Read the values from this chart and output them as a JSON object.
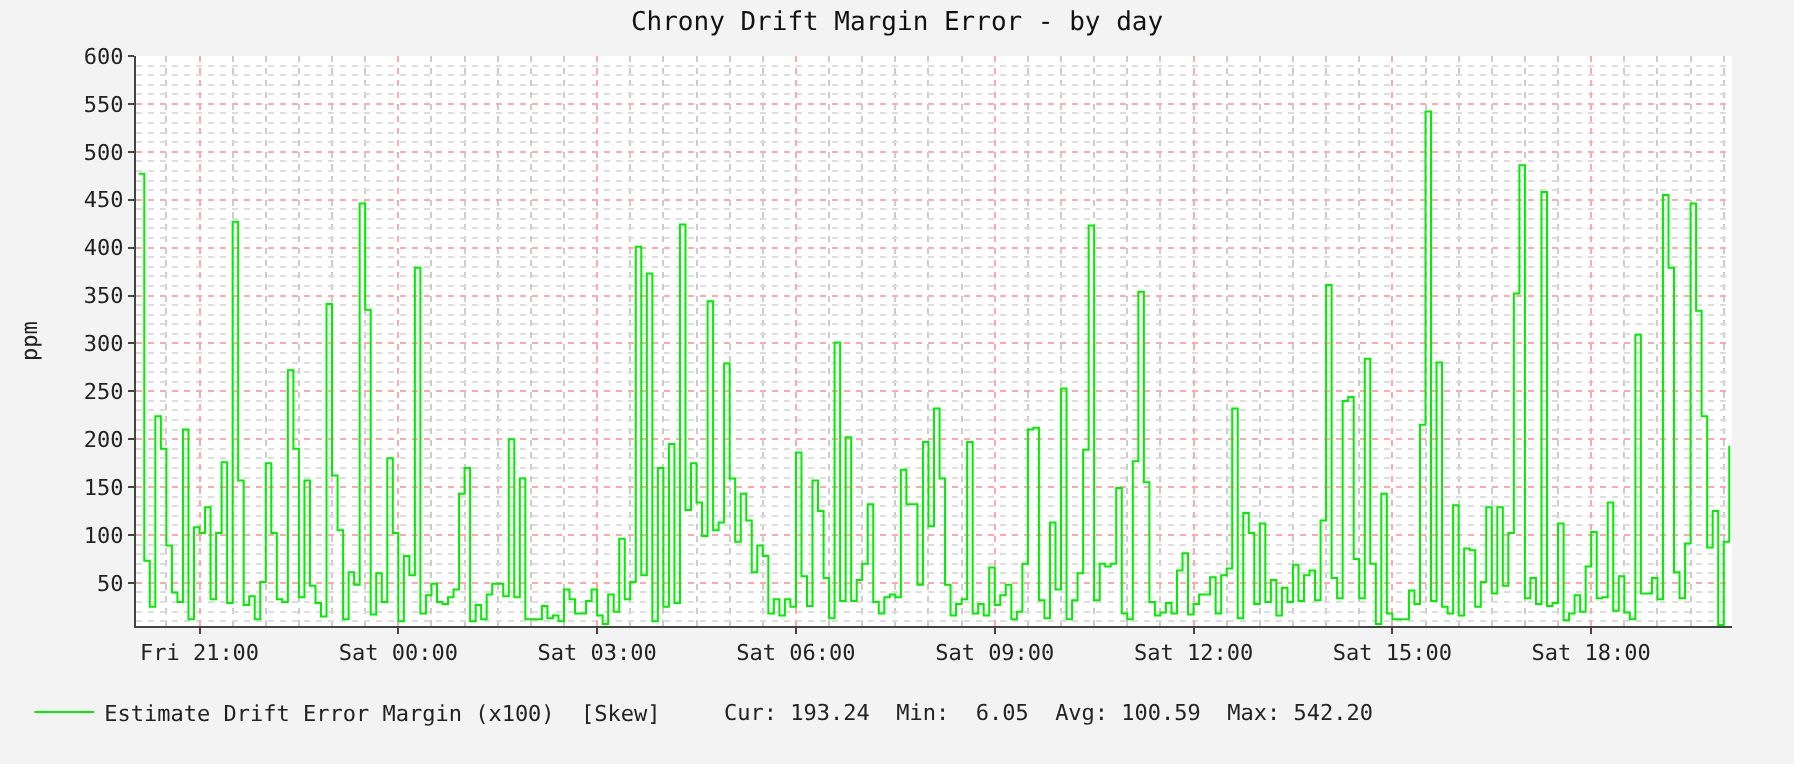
{
  "chart_data": {
    "type": "step",
    "title": "Chrony Drift Margin Error - by day",
    "ylabel": "ppm",
    "categories": [
      null,
      null,
      null,
      null,
      null,
      null,
      null,
      null,
      null,
      null,
      null,
      "Fri 21:00",
      null,
      null,
      null,
      null,
      null,
      null,
      null,
      null,
      null,
      null,
      null,
      null,
      null,
      null,
      null,
      null,
      null,
      null,
      null,
      null,
      null,
      null,
      null,
      null,
      null,
      null,
      null,
      null,
      null,
      null,
      null,
      null,
      null,
      null,
      null,
      "Sat 00:00",
      null,
      null,
      null,
      null,
      null,
      null,
      null,
      null,
      null,
      null,
      null,
      null,
      null,
      null,
      null,
      null,
      null,
      null,
      null,
      null,
      null,
      null,
      null,
      null,
      null,
      null,
      null,
      null,
      null,
      null,
      null,
      null,
      null,
      null,
      null,
      "Sat 03:00",
      null,
      null,
      null,
      null,
      null,
      null,
      null,
      null,
      null,
      null,
      null,
      null,
      null,
      null,
      null,
      null,
      null,
      null,
      null,
      null,
      null,
      null,
      null,
      null,
      null,
      null,
      null,
      null,
      null,
      null,
      null,
      null,
      null,
      null,
      null,
      "Sat 06:00",
      null,
      null,
      null,
      null,
      null,
      null,
      null,
      null,
      null,
      null,
      null,
      null,
      null,
      null,
      null,
      null,
      null,
      null,
      null,
      null,
      null,
      null,
      null,
      null,
      null,
      null,
      null,
      null,
      null,
      null,
      null,
      null,
      null,
      null,
      null,
      "Sat 09:00",
      null,
      null,
      null,
      null,
      null,
      null,
      null,
      null,
      null,
      null,
      null,
      null,
      null,
      null,
      null,
      null,
      null,
      null,
      null,
      null,
      null,
      null,
      null,
      null,
      null,
      null,
      null,
      null,
      null,
      null,
      null,
      null,
      null,
      null,
      null,
      "Sat 12:00",
      null,
      null,
      null,
      null,
      null,
      null,
      null,
      null,
      null,
      null,
      null,
      null,
      null,
      null,
      null,
      null,
      null,
      null,
      null,
      null,
      null,
      null,
      null,
      null,
      null,
      null,
      null,
      null,
      null,
      null,
      null,
      null,
      null,
      null,
      null,
      "Sat 15:00",
      null,
      null,
      null,
      null,
      null,
      null,
      null,
      null,
      null,
      null,
      null,
      null,
      null,
      null,
      null,
      null,
      null,
      null,
      null,
      null,
      null,
      null,
      null,
      null,
      null,
      null,
      null,
      null,
      null,
      null,
      null,
      null,
      null,
      null,
      null,
      "Sat 18:00",
      null,
      null,
      null,
      null,
      null,
      null,
      null,
      null,
      null,
      null,
      null,
      null,
      null,
      null,
      null,
      null,
      null,
      null,
      null,
      null,
      null,
      null,
      null,
      null,
      null
    ],
    "series": [
      {
        "name": "Estimate Drift Error Margin (x100)  [Skew]",
        "color": "#00ee00",
        "values": [
          477,
          73,
          25,
          224,
          190,
          89,
          40,
          30,
          210,
          12,
          108,
          102,
          129,
          33,
          102,
          176,
          29,
          427,
          157,
          27,
          36,
          12,
          51,
          175,
          102,
          33,
          30,
          272,
          190,
          35,
          157,
          47,
          29,
          15,
          341,
          162,
          105,
          12,
          61,
          48,
          446,
          335,
          17,
          60,
          30,
          180,
          102,
          10,
          78,
          58,
          379,
          18,
          37,
          49,
          30,
          28,
          35,
          43,
          143,
          170,
          10,
          27,
          12,
          38,
          49,
          49,
          36,
          200,
          35,
          159,
          12,
          12,
          12,
          26,
          13,
          16,
          10,
          43,
          33,
          18,
          18,
          31,
          43,
          16,
          7,
          38,
          20,
          96,
          33,
          51,
          401,
          58,
          373,
          10,
          170,
          25,
          195,
          29,
          424,
          126,
          175,
          134,
          99,
          344,
          105,
          113,
          279,
          159,
          93,
          143,
          115,
          61,
          89,
          78,
          18,
          33,
          16,
          33,
          25,
          186,
          57,
          26,
          157,
          125,
          55,
          13,
          301,
          31,
          202,
          31,
          53,
          70,
          132,
          30,
          18,
          35,
          38,
          35,
          168,
          132,
          132,
          48,
          197,
          109,
          232,
          159,
          48,
          16,
          28,
          33,
          197,
          18,
          28,
          16,
          66,
          27,
          37,
          48,
          12,
          20,
          70,
          210,
          212,
          32,
          13,
          113,
          43,
          253,
          12,
          32,
          60,
          189,
          423,
          32,
          70,
          67,
          70,
          149,
          18,
          12,
          177,
          354,
          155,
          30,
          16,
          19,
          29,
          18,
          63,
          81,
          17,
          28,
          38,
          38,
          56,
          18,
          58,
          65,
          232,
          13,
          123,
          102,
          28,
          112,
          30,
          53,
          16,
          45,
          30,
          69,
          31,
          58,
          63,
          32,
          115,
          361,
          55,
          34,
          240,
          244,
          75,
          34,
          284,
          70,
          7,
          143,
          18,
          12,
          12,
          12,
          42,
          28,
          215,
          542,
          31,
          280,
          25,
          18,
          131,
          16,
          86,
          84,
          25,
          51,
          129,
          39,
          129,
          47,
          102,
          352,
          486,
          34,
          55,
          28,
          458,
          26,
          29,
          112,
          11,
          18,
          37,
          20,
          67,
          103,
          34,
          35,
          134,
          21,
          57,
          19,
          12,
          309,
          39,
          39,
          55,
          33,
          455,
          379,
          61,
          34,
          91,
          446,
          334,
          224,
          87,
          125,
          6,
          93,
          193
        ]
      }
    ],
    "ylim": [
      5,
      600
    ],
    "yticks": [
      50,
      100,
      150,
      200,
      250,
      300,
      350,
      400,
      450,
      500,
      550,
      600
    ],
    "grid": true,
    "legend": "bottom left",
    "marker": "none",
    "line_style": "solid",
    "annotations": [
      "Cur: 193.24  Min:  6.05  Avg: 100.59  Max: 542.20"
    ]
  }
}
